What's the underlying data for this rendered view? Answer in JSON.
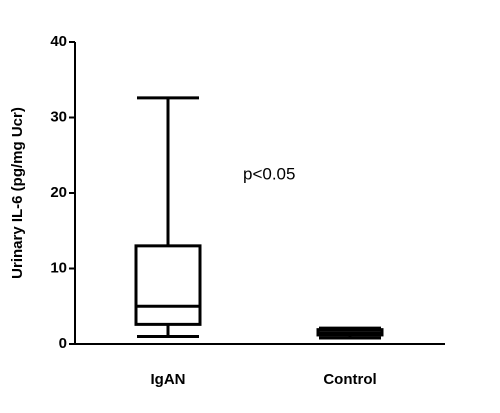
{
  "chart_data": {
    "type": "box",
    "y_label": "Urinary IL-6 (pg/mg Ucr)",
    "annotation": "p<0.05",
    "categories": [
      "IgAN",
      "Control"
    ],
    "boxes": [
      {
        "min": 1,
        "q1": 2.6,
        "median": 5,
        "q3": 13,
        "max": 32.6
      },
      {
        "min": 0.8,
        "q1": 1.2,
        "median": 1.5,
        "q3": 1.9,
        "max": 2.1
      }
    ],
    "color": "#000000",
    "ylim": [
      0,
      40
    ],
    "yticks": [
      0,
      10,
      20,
      30,
      40
    ]
  }
}
